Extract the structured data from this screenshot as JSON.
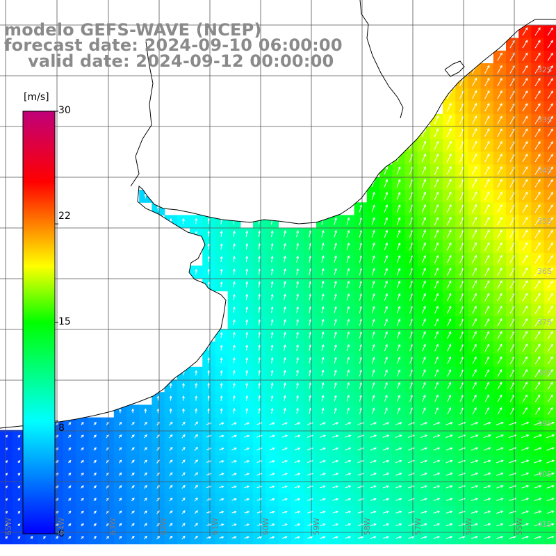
{
  "title": {
    "line1": "modelo GEFS-WAVE (NCEP)",
    "line2": "forecast date: 2024-09-10 06:00:00",
    "line3": "valid date: 2024-09-12 00:00:00"
  },
  "colorbar": {
    "units": "[m/s]",
    "labels": [
      "30",
      "22",
      "15",
      "8",
      "0"
    ],
    "ticks": [
      30,
      22,
      15,
      8,
      0
    ],
    "range": [
      0,
      30
    ],
    "stops": [
      {
        "v": 0,
        "c": "#0000ff"
      },
      {
        "v": 8,
        "c": "#00ffff"
      },
      {
        "v": 15,
        "c": "#00ff00"
      },
      {
        "v": 19,
        "c": "#ffff00"
      },
      {
        "v": 22,
        "c": "#ff8000"
      },
      {
        "v": 25,
        "c": "#ff0000"
      },
      {
        "v": 30,
        "c": "#c0007a"
      }
    ]
  },
  "grid": {
    "lat_labels": [
      "32S",
      "33S",
      "34S",
      "35S",
      "36S",
      "37S",
      "38S",
      "39S",
      "40S",
      "41S"
    ],
    "lon_labels": [
      "65W",
      "64W",
      "63W",
      "62W",
      "61W",
      "60W",
      "59W",
      "58W",
      "57W",
      "56W",
      "55W"
    ]
  },
  "colors": {
    "title": "#8a8a8a",
    "land": "#ffffff",
    "coast": "#000000",
    "grid": "#555555",
    "arrow": "#ffffff"
  }
}
